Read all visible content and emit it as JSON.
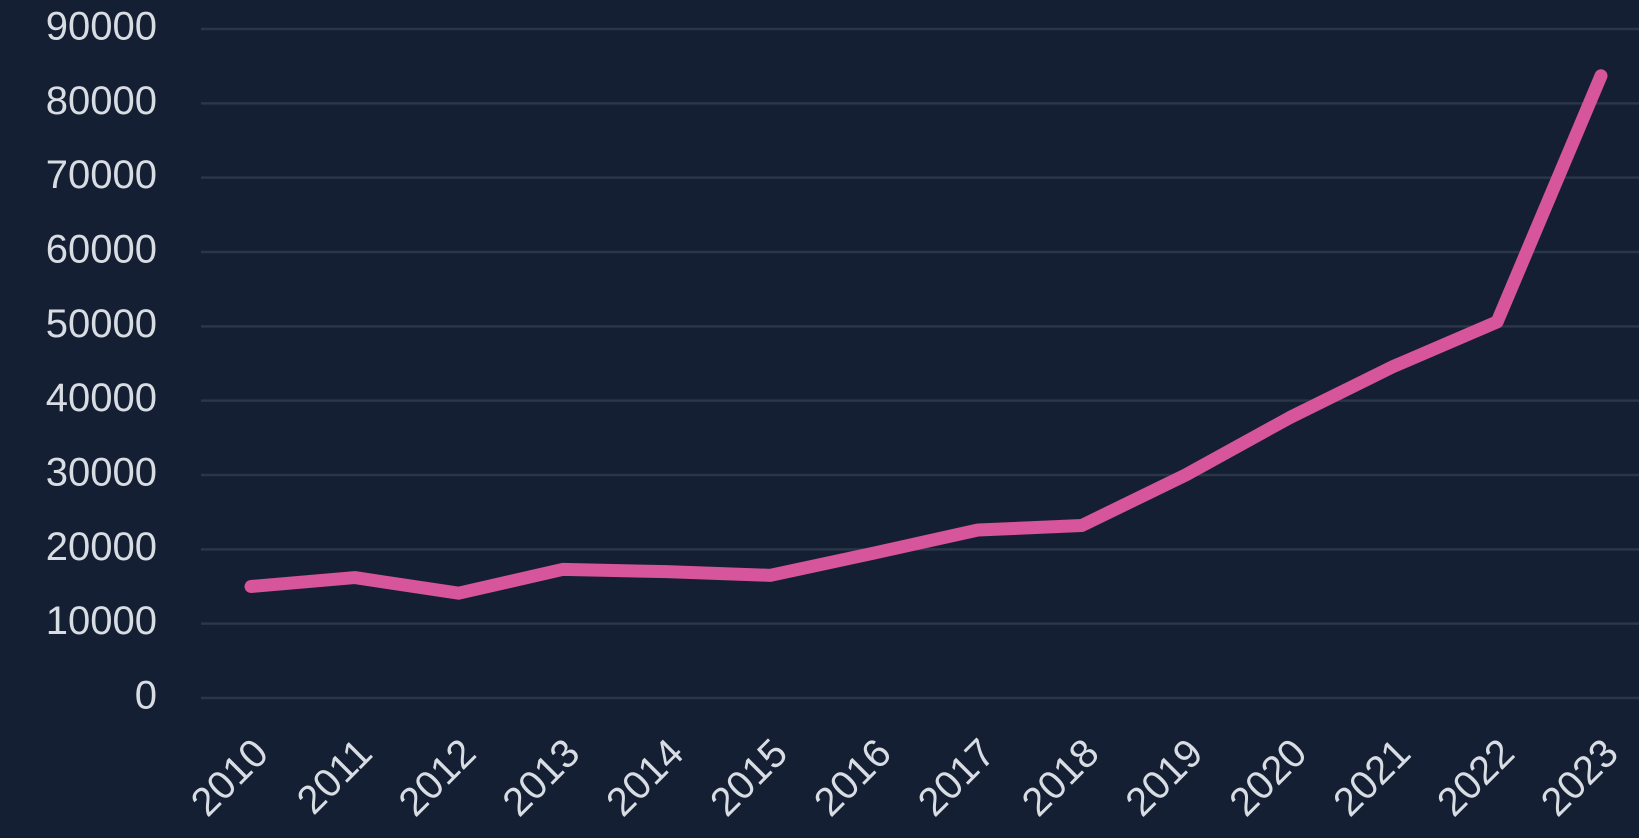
{
  "chart_data": {
    "type": "line",
    "categories": [
      "2010",
      "2011",
      "2012",
      "2013",
      "2014",
      "2015",
      "2016",
      "2017",
      "2018",
      "2019",
      "2020",
      "2021",
      "2022",
      "2023"
    ],
    "values": [
      15000,
      16200,
      14100,
      17300,
      17000,
      16500,
      19500,
      22600,
      23200,
      30000,
      37700,
      44600,
      50600,
      83700
    ],
    "color": "#d6559b",
    "ylim": [
      0,
      90000
    ],
    "yticks": [
      0,
      10000,
      20000,
      30000,
      40000,
      50000,
      60000,
      70000,
      80000,
      90000
    ],
    "grid": true
  }
}
